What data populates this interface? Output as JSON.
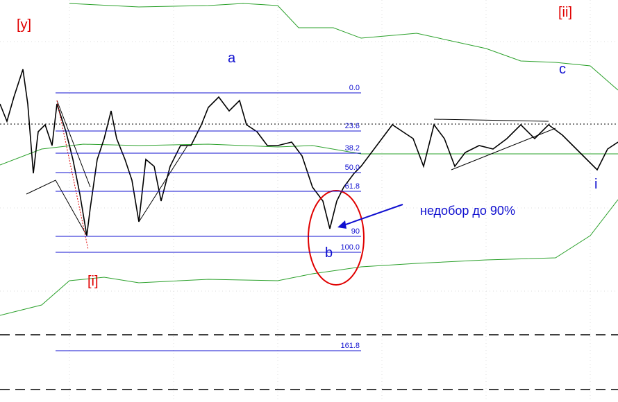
{
  "wave_labels": {
    "y": "[y]",
    "ii": "[ii]",
    "a": "a",
    "c": "c",
    "b": "b",
    "i_minor": "i",
    "i": "[i]"
  },
  "fib_levels": [
    "0.0",
    "23.6",
    "38.2",
    "50.0",
    "61.8",
    "90",
    "100.0",
    "161.8"
  ],
  "annotation": "недобор до 90%"
}
